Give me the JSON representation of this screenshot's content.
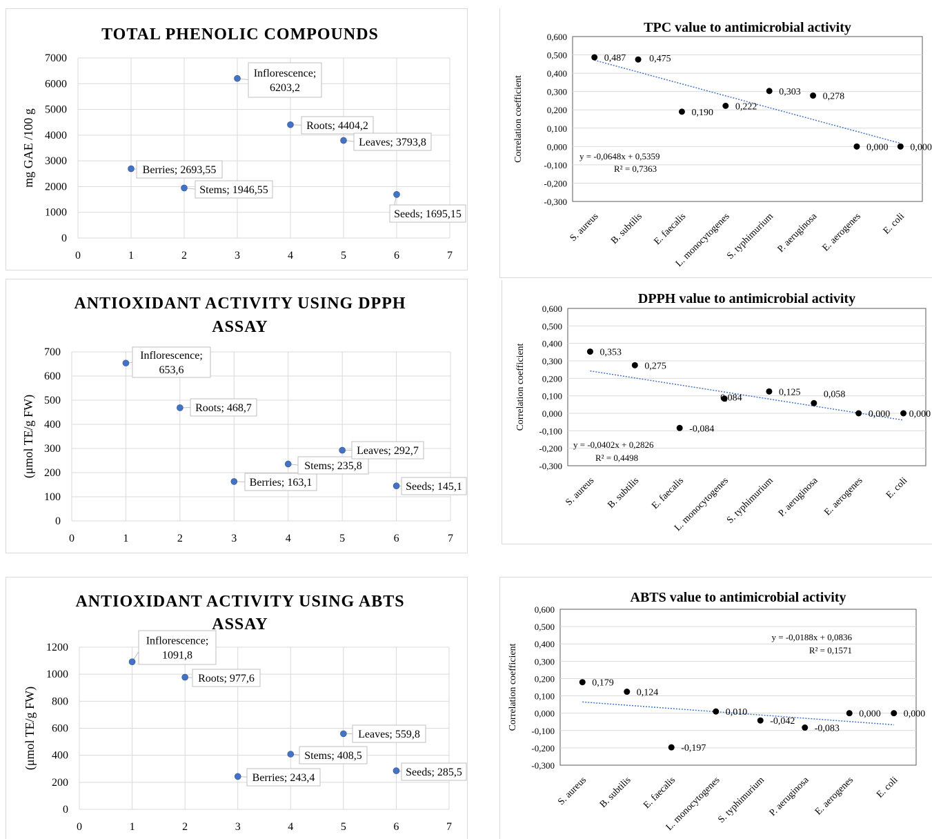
{
  "chart_data": [
    {
      "id": "tpc",
      "type": "scatter",
      "title": "TOTAL PHENOLIC COMPOUNDS",
      "ylabel": "mg GAE /100 g",
      "xlabel": "",
      "xlim": [
        0,
        7
      ],
      "ylim": [
        0,
        7000
      ],
      "xticks": [
        "0",
        "1",
        "2",
        "3",
        "4",
        "5",
        "6",
        "7"
      ],
      "yticks": [
        "0",
        "1000",
        "2000",
        "3000",
        "4000",
        "5000",
        "6000",
        "7000"
      ],
      "grid": true,
      "points": [
        {
          "x": 1,
          "y": 2693.55,
          "label": [
            "Berries; 2693,55"
          ]
        },
        {
          "x": 2,
          "y": 1946.55,
          "label": [
            "Stems; 1946,55"
          ]
        },
        {
          "x": 3,
          "y": 6203.2,
          "label": [
            "Inflorescence;",
            "6203,2"
          ]
        },
        {
          "x": 4,
          "y": 4404.2,
          "label": [
            "Roots; 4404,2"
          ]
        },
        {
          "x": 5,
          "y": 3793.8,
          "label": [
            "Leaves; 3793,8"
          ]
        },
        {
          "x": 6,
          "y": 1695.15,
          "label": [
            "Seeds; 1695,15"
          ]
        }
      ]
    },
    {
      "id": "dpph",
      "type": "scatter",
      "title": [
        "ANTIOXIDANT  ACTIVITY USING DPPH",
        "ASSAY"
      ],
      "ylabel": "(μmol TE/g FW)",
      "xlabel": "",
      "xlim": [
        0,
        7
      ],
      "ylim": [
        0,
        700
      ],
      "xticks": [
        "0",
        "1",
        "2",
        "3",
        "4",
        "5",
        "6",
        "7"
      ],
      "yticks": [
        "0",
        "100",
        "200",
        "300",
        "400",
        "500",
        "600",
        "700"
      ],
      "grid": true,
      "points": [
        {
          "x": 1,
          "y": 653.6,
          "label": [
            "Inflorescence;",
            "653,6"
          ]
        },
        {
          "x": 2,
          "y": 468.7,
          "label": [
            "Roots; 468,7"
          ]
        },
        {
          "x": 3,
          "y": 163.1,
          "label": [
            "Berries; 163,1"
          ]
        },
        {
          "x": 4,
          "y": 235.8,
          "label": [
            "Stems; 235,8"
          ]
        },
        {
          "x": 5,
          "y": 292.7,
          "label": [
            "Leaves; 292,7"
          ]
        },
        {
          "x": 6,
          "y": 145.1,
          "label": [
            "Seeds; 145,1"
          ]
        }
      ]
    },
    {
      "id": "abts",
      "type": "scatter",
      "title": [
        "ANTIOXIDANT  ACTIVITY USING ABTS",
        "ASSAY"
      ],
      "ylabel": "(μmol TE/g FW)",
      "xlabel": "",
      "xlim": [
        0,
        7
      ],
      "ylim": [
        0,
        1200
      ],
      "xticks": [
        "0",
        "1",
        "2",
        "3",
        "4",
        "5",
        "6",
        "7"
      ],
      "yticks": [
        "0",
        "200",
        "400",
        "600",
        "800",
        "1000",
        "1200"
      ],
      "grid": true,
      "points": [
        {
          "x": 1,
          "y": 1091.8,
          "label": [
            "Inflorescence;",
            "1091,8"
          ]
        },
        {
          "x": 2,
          "y": 977.6,
          "label": [
            "Roots; 977,6"
          ]
        },
        {
          "x": 3,
          "y": 243.4,
          "label": [
            "Berries; 243,4"
          ]
        },
        {
          "x": 4,
          "y": 408.5,
          "label": [
            "Stems; 408,5"
          ]
        },
        {
          "x": 5,
          "y": 559.8,
          "label": [
            "Leaves; 559,8"
          ]
        },
        {
          "x": 6,
          "y": 285.5,
          "label": [
            "Seeds; 285,5"
          ]
        }
      ]
    },
    {
      "id": "tpc_corr",
      "type": "scatter",
      "title": "TPC value to antimicrobial activity",
      "ylabel": "Correlation coefficient",
      "xlabel": "",
      "ylim": [
        -0.3,
        0.6
      ],
      "yticks": [
        "0,600",
        "0,500",
        "0,400",
        "0,300",
        "0,200",
        "0,100",
        "0,000",
        "-0,100",
        "-0,200",
        "-0,300"
      ],
      "categories": [
        "S. aureus",
        "B. subtilis",
        "E. faecalis",
        "L. monocytogenes",
        "S. typhimurium",
        "P. aeruginosa",
        "E. aerogenes",
        "E. coli"
      ],
      "values": [
        0.487,
        0.475,
        0.19,
        0.222,
        0.303,
        0.278,
        0.0,
        0.0
      ],
      "value_labels": [
        "0,487",
        "0,475",
        "0,190",
        "0,222",
        "0,303",
        "0,278",
        "0,000",
        "0,000"
      ],
      "trendline": {
        "slope": -0.0648,
        "intercept": 0.5359,
        "equation": "y = -0,0648x + 0,5359",
        "r2": "R² = 0,7363"
      }
    },
    {
      "id": "dpph_corr",
      "type": "scatter",
      "title": "DPPH value to antimicrobial activity",
      "ylabel": "Correlation coefficient",
      "xlabel": "",
      "ylim": [
        -0.3,
        0.6
      ],
      "yticks": [
        "0,600",
        "0,500",
        "0,400",
        "0,300",
        "0,200",
        "0,100",
        "0,000",
        "-0,100",
        "-0,200",
        "-0,300"
      ],
      "categories": [
        "S. aureus",
        "B. subtilis",
        "E. faecalis",
        "L. monocytogenes",
        "S. typhimurium",
        "P. aeruginosa",
        "E. aerogenes",
        "E. coli"
      ],
      "values": [
        0.353,
        0.275,
        -0.084,
        0.084,
        0.125,
        0.058,
        0.0,
        0.0
      ],
      "value_labels": [
        "0,353",
        "0,275",
        "-0,084",
        "0,084",
        "0,125",
        "0,058",
        "0,000",
        "0,000"
      ],
      "trendline": {
        "slope": -0.0402,
        "intercept": 0.2826,
        "equation": "y = -0,0402x + 0,2826",
        "r2": "R² = 0,4498"
      }
    },
    {
      "id": "abts_corr",
      "type": "scatter",
      "title": "ABTS value to antimicrobial activity",
      "ylabel": "Correlation coefficient",
      "xlabel": "",
      "ylim": [
        -0.3,
        0.6
      ],
      "yticks": [
        "0,600",
        "0,500",
        "0,400",
        "0,300",
        "0,200",
        "0,100",
        "0,000",
        "-0,100",
        "-0,200",
        "-0,300"
      ],
      "categories": [
        "S. aureus",
        "B. subtilis",
        "E. faecalis",
        "L. monocytogenes",
        "S. typhimurium",
        "P. aeruginosa",
        "E. aerogenes",
        "E. coli"
      ],
      "values": [
        0.179,
        0.124,
        -0.197,
        0.01,
        -0.042,
        -0.083,
        0.0,
        0.0
      ],
      "value_labels": [
        "0,179",
        "0,124",
        "-0,197",
        "0,010",
        "-0,042",
        "-0,083",
        "0,000",
        "0,000"
      ],
      "trendline": {
        "slope": -0.0188,
        "intercept": 0.0836,
        "equation": "y = -0,0188x + 0,0836",
        "r2": "R² = 0,1571"
      }
    }
  ],
  "colors": {
    "point": "#4472c4",
    "corr_point": "#000000",
    "trendline": "#4472c4",
    "grid": "#d9d9d9",
    "axis_text": "#000000",
    "label_box_border": "#bfbfbf"
  }
}
